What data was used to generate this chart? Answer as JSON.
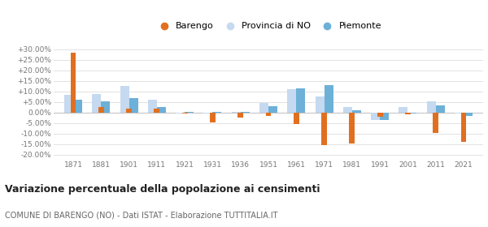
{
  "years": [
    1871,
    1881,
    1901,
    1911,
    1921,
    1931,
    1936,
    1951,
    1961,
    1971,
    1981,
    1991,
    2001,
    2011,
    2021
  ],
  "barengo": [
    28.5,
    2.5,
    2.0,
    2.0,
    -0.3,
    -4.5,
    -2.5,
    -1.5,
    -5.5,
    -15.5,
    -14.5,
    -2.0,
    -1.0,
    -9.5,
    -14.0
  ],
  "provincia_no": [
    8.5,
    9.0,
    12.5,
    6.0,
    -0.5,
    -0.5,
    0.5,
    4.5,
    11.0,
    7.5,
    2.5,
    -3.5,
    2.5,
    5.5,
    -0.5
  ],
  "piemonte": [
    6.0,
    5.5,
    7.0,
    2.5,
    0.5,
    0.5,
    0.5,
    3.0,
    11.5,
    13.0,
    1.0,
    -3.5,
    -0.5,
    3.5,
    -1.5
  ],
  "barengo_color": "#e07020",
  "provincia_color": "#c5d9f0",
  "piemonte_color": "#6db0d8",
  "title": "Variazione percentuale della popolazione ai censimenti",
  "subtitle": "COMUNE DI BARENGO (NO) - Dati ISTAT - Elaborazione TUTTITALIA.IT",
  "legend_labels": [
    "Barengo",
    "Provincia di NO",
    "Piemonte"
  ],
  "yticks": [
    -20,
    -15,
    -10,
    -5,
    0,
    5,
    10,
    15,
    20,
    25,
    30
  ],
  "ylim": [
    -22,
    33
  ],
  "bg_color": "#ffffff"
}
